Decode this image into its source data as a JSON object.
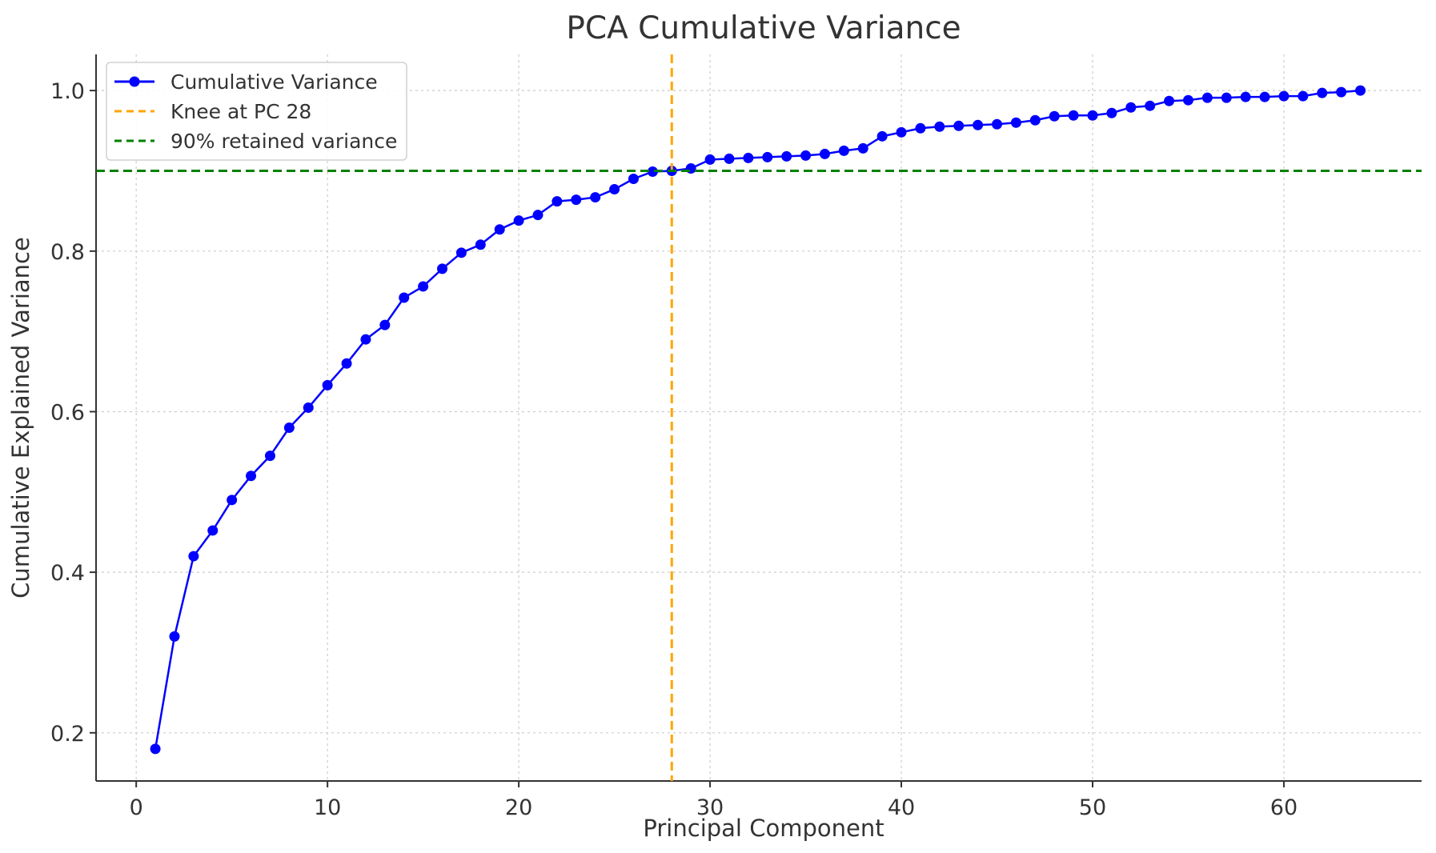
{
  "chart_data": {
    "type": "line",
    "title": "PCA Cumulative Variance",
    "xlabel": "Principal Component",
    "ylabel": "Cumulative Explained Variance",
    "xlim": [
      -2.1,
      67.2
    ],
    "ylim": [
      0.14,
      1.045
    ],
    "xticks": [
      0,
      10,
      20,
      30,
      40,
      50,
      60
    ],
    "yticks": [
      0.2,
      0.4,
      0.6,
      0.8,
      1.0
    ],
    "ytick_labels": [
      "0.2",
      "0.4",
      "0.6",
      "0.8",
      "1.0"
    ],
    "grid": true,
    "legend_position": "top-left",
    "series": [
      {
        "name": "Cumulative Variance",
        "color": "#0000ff",
        "marker": "circle",
        "x": [
          1,
          2,
          3,
          4,
          5,
          6,
          7,
          8,
          9,
          10,
          11,
          12,
          13,
          14,
          15,
          16,
          17,
          18,
          19,
          20,
          21,
          22,
          23,
          24,
          25,
          26,
          27,
          28,
          29,
          30,
          31,
          32,
          33,
          34,
          35,
          36,
          37,
          38,
          39,
          40,
          41,
          42,
          43,
          44,
          45,
          46,
          47,
          48,
          49,
          50,
          51,
          52,
          53,
          54,
          55,
          56,
          57,
          58,
          59,
          60,
          61,
          62,
          63,
          64
        ],
        "values": [
          0.18,
          0.32,
          0.42,
          0.452,
          0.49,
          0.52,
          0.545,
          0.58,
          0.605,
          0.633,
          0.66,
          0.69,
          0.708,
          0.742,
          0.756,
          0.778,
          0.798,
          0.808,
          0.827,
          0.838,
          0.845,
          0.862,
          0.864,
          0.867,
          0.877,
          0.89,
          0.899,
          0.9,
          0.903,
          0.914,
          0.915,
          0.916,
          0.917,
          0.918,
          0.919,
          0.921,
          0.925,
          0.928,
          0.943,
          0.948,
          0.953,
          0.955,
          0.956,
          0.957,
          0.958,
          0.96,
          0.963,
          0.968,
          0.969,
          0.969,
          0.972,
          0.979,
          0.981,
          0.987,
          0.988,
          0.991,
          0.991,
          0.992,
          0.992,
          0.993,
          0.993,
          0.997,
          0.998,
          1.0
        ]
      }
    ],
    "reference_lines": [
      {
        "name": "Knee at PC 28",
        "orientation": "vertical",
        "value": 28,
        "color": "#ffa500",
        "style": "dashed"
      },
      {
        "name": "90% retained variance",
        "orientation": "horizontal",
        "value": 0.9,
        "color": "#008000",
        "style": "dashed"
      }
    ]
  }
}
